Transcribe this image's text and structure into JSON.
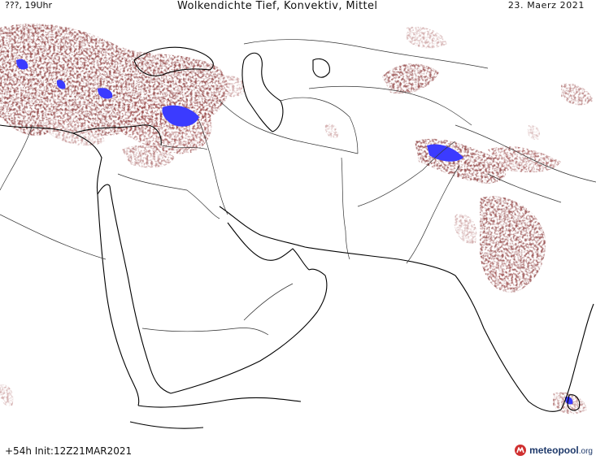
{
  "header": {
    "left": "???, 19Uhr",
    "title": "Wolkendichte   Tief, Konvektiv, Mittel",
    "date": "23. Maerz 2021"
  },
  "footer": {
    "run_info": "+54h  Init:12Z21MAR2021",
    "brand": "meteopool",
    "brand_domain": ".org"
  },
  "colors": {
    "cloud_dense": "#8b3a3a",
    "cloud_light": "#b87c7c",
    "cloud_core": "#3b3bff",
    "coastline": "#000000",
    "border": "#333333"
  },
  "icons": {
    "brand_logo": "meteopool-logo"
  }
}
